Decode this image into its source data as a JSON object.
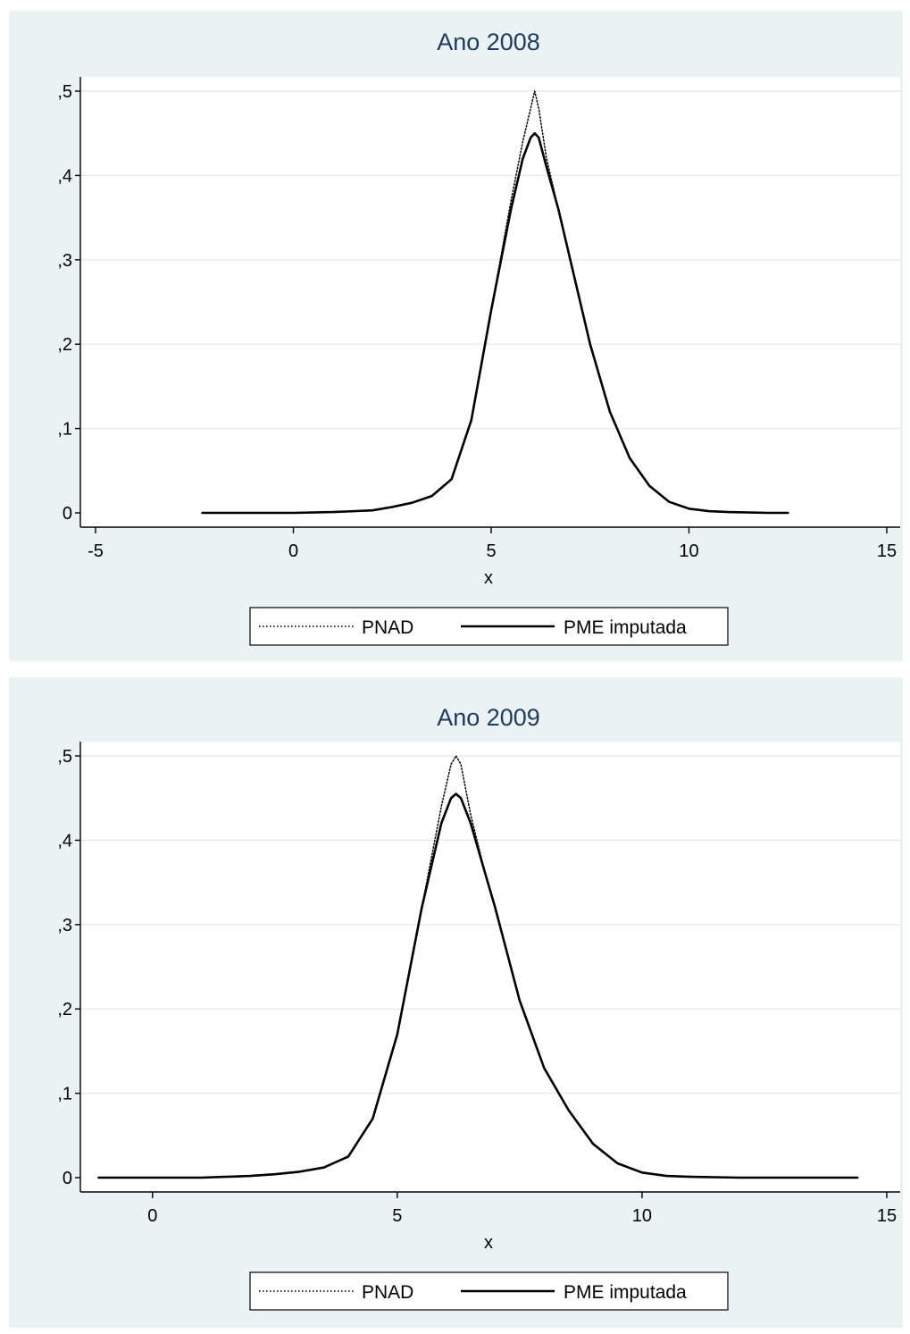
{
  "colors": {
    "outer_background": "#eaf2f3",
    "plot_background": "#ffffff",
    "gridline": "#e4eeee",
    "title": "#1e3a5f",
    "ink": "#000000"
  },
  "chart_data": [
    {
      "type": "line",
      "title": "Ano 2008",
      "xlabel": "x",
      "ylabel": "",
      "xlim": [
        -5,
        15
      ],
      "ylim": [
        0,
        0.5
      ],
      "x_ticks": [
        -5,
        0,
        5,
        10,
        15
      ],
      "x_tick_labels": [
        "-5",
        "0",
        "5",
        "10",
        "15"
      ],
      "y_ticks": [
        0,
        0.1,
        0.2,
        0.3,
        0.4,
        0.5
      ],
      "y_tick_labels": [
        "0",
        ",1",
        ",2",
        ",3",
        ",4",
        ",5"
      ],
      "grid": true,
      "legend": {
        "placement": "bottom",
        "entries": [
          "PNAD",
          "PME imputada"
        ]
      },
      "series": [
        {
          "name": "PNAD",
          "style": "dotted",
          "x": [
            -2.3,
            -1,
            0,
            1,
            2,
            2.5,
            3,
            3.5,
            4,
            4.5,
            5,
            5.5,
            5.8,
            6,
            6.1,
            6.2,
            6.4,
            6.7,
            7,
            7.5,
            8,
            8.5,
            9,
            9.5,
            10,
            10.5,
            11,
            12,
            12.5
          ],
          "y": [
            0,
            0,
            0,
            0.001,
            0.003,
            0.007,
            0.012,
            0.02,
            0.04,
            0.11,
            0.24,
            0.37,
            0.44,
            0.48,
            0.5,
            0.48,
            0.42,
            0.36,
            0.3,
            0.2,
            0.12,
            0.065,
            0.032,
            0.013,
            0.005,
            0.002,
            0.001,
            0,
            0
          ]
        },
        {
          "name": "PME imputada",
          "style": "solid",
          "x": [
            -2.3,
            -1,
            0,
            1,
            2,
            2.5,
            3,
            3.5,
            4,
            4.5,
            5,
            5.5,
            5.8,
            6,
            6.1,
            6.2,
            6.4,
            6.7,
            7,
            7.5,
            8,
            8.5,
            9,
            9.5,
            10,
            10.5,
            11,
            12,
            12.5
          ],
          "y": [
            0,
            0,
            0,
            0.001,
            0.003,
            0.007,
            0.012,
            0.02,
            0.04,
            0.11,
            0.24,
            0.36,
            0.42,
            0.445,
            0.45,
            0.445,
            0.41,
            0.36,
            0.3,
            0.2,
            0.12,
            0.065,
            0.032,
            0.013,
            0.005,
            0.002,
            0.001,
            0,
            0
          ]
        }
      ]
    },
    {
      "type": "line",
      "title": "Ano 2009",
      "xlabel": "x",
      "ylabel": "",
      "xlim": [
        -1.2,
        15
      ],
      "ylim": [
        0,
        0.5
      ],
      "x_ticks": [
        0,
        5,
        10,
        15
      ],
      "x_tick_labels": [
        "0",
        "5",
        "10",
        "15"
      ],
      "y_ticks": [
        0,
        0.1,
        0.2,
        0.3,
        0.4,
        0.5
      ],
      "y_tick_labels": [
        "0",
        ",1",
        ",2",
        ",3",
        ",4",
        ",5"
      ],
      "grid": true,
      "legend": {
        "placement": "bottom",
        "entries": [
          "PNAD",
          "PME imputada"
        ]
      },
      "series": [
        {
          "name": "PNAD",
          "style": "dotted",
          "x": [
            -1.1,
            0,
            1,
            2,
            2.5,
            3,
            3.5,
            4,
            4.5,
            5,
            5.5,
            5.9,
            6.1,
            6.2,
            6.3,
            6.5,
            6.8,
            7,
            7.5,
            8,
            8.5,
            9,
            9.5,
            10,
            10.5,
            11,
            12,
            13,
            14.4
          ],
          "y": [
            0,
            0,
            0,
            0.002,
            0.004,
            0.007,
            0.012,
            0.025,
            0.07,
            0.17,
            0.32,
            0.44,
            0.49,
            0.5,
            0.49,
            0.43,
            0.36,
            0.32,
            0.21,
            0.13,
            0.08,
            0.04,
            0.017,
            0.006,
            0.002,
            0.001,
            0,
            0,
            0
          ]
        },
        {
          "name": "PME imputada",
          "style": "solid",
          "x": [
            -1.1,
            0,
            1,
            2,
            2.5,
            3,
            3.5,
            4,
            4.5,
            5,
            5.5,
            5.9,
            6.1,
            6.2,
            6.3,
            6.5,
            6.8,
            7,
            7.5,
            8,
            8.5,
            9,
            9.5,
            10,
            10.5,
            11,
            12,
            13,
            14.4
          ],
          "y": [
            0,
            0,
            0,
            0.002,
            0.004,
            0.007,
            0.012,
            0.025,
            0.07,
            0.17,
            0.32,
            0.42,
            0.45,
            0.455,
            0.45,
            0.42,
            0.36,
            0.32,
            0.21,
            0.13,
            0.08,
            0.04,
            0.017,
            0.006,
            0.002,
            0.001,
            0,
            0,
            0
          ]
        }
      ]
    }
  ]
}
